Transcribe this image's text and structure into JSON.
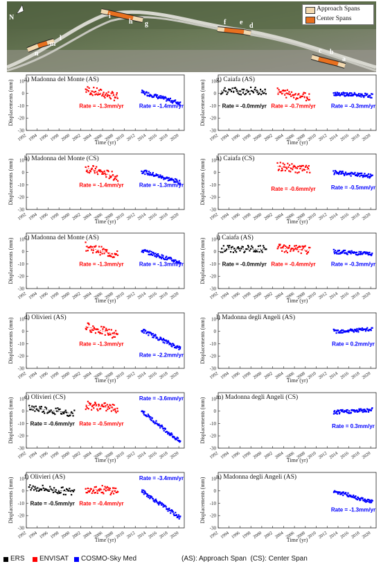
{
  "map": {
    "north_label": "N",
    "legend": [
      {
        "label": "Approach Spans",
        "color": "#f2d9b0"
      },
      {
        "label": "Center Spans",
        "color": "#e8701f"
      }
    ],
    "span_labels": [
      "a",
      "b",
      "c",
      "d",
      "e",
      "f",
      "g",
      "h",
      "i",
      "l",
      "m",
      "n"
    ]
  },
  "colors": {
    "ERS": "#000000",
    "ENVISAT": "#ff0000",
    "COSMO": "#0000ff"
  },
  "footer": {
    "legend": [
      {
        "label": "ERS",
        "color": "#000000"
      },
      {
        "label": "ENVISAT",
        "color": "#ff0000"
      },
      {
        "label": "COSMO-Sky Med",
        "color": "#0000ff"
      }
    ],
    "abbrev_note": "(AS): Approach Span  (CS): Center Span"
  },
  "chart_data": [
    {
      "panel": "a",
      "type": "scatter",
      "title": "a) Madonna del Monte (AS)",
      "xlabel": "Time (yr)",
      "ylabel": "Displacements (mm)",
      "xlim": [
        1992,
        2021
      ],
      "ylim": [
        -30,
        15
      ],
      "xticks": [
        "1992",
        "1994",
        "1996",
        "1998",
        "2000",
        "2002",
        "2004",
        "2006",
        "2008",
        "2010",
        "2012",
        "2014",
        "2016",
        "2018",
        "2020"
      ],
      "yticks": [
        "10",
        "0",
        "-10",
        "-20",
        "-30"
      ],
      "series": [
        {
          "name": "ENVISAT",
          "x_range": [
            2002.9,
            2008.8
          ],
          "y_start": 3,
          "y_end": -3,
          "rate_label": "Rate = -1.3mm/yr"
        },
        {
          "name": "COSMO-Sky Med",
          "x_range": [
            2013.2,
            2020.3
          ],
          "y_start": 1,
          "y_end": -8,
          "rate_label": "Rate = -1.4mm/yr"
        }
      ]
    },
    {
      "panel": "b",
      "type": "scatter",
      "title": "b) Madonna del Monte (CS)",
      "xlabel": "Time (yr)",
      "ylabel": "Displacements (mm)",
      "xlim": [
        1992,
        2021
      ],
      "ylim": [
        -30,
        15
      ],
      "xticks": [
        "1992",
        "1994",
        "1996",
        "1998",
        "2000",
        "2002",
        "2004",
        "2006",
        "2008",
        "2010",
        "2012",
        "2014",
        "2016",
        "2018",
        "2020"
      ],
      "yticks": [
        "10",
        "0",
        "-10",
        "-20",
        "-30"
      ],
      "series": [
        {
          "name": "ENVISAT",
          "x_range": [
            2002.9,
            2008.8
          ],
          "y_start": 4,
          "y_end": -4,
          "rate_label": "Rate = -1.4mm/yr"
        },
        {
          "name": "COSMO-Sky Med",
          "x_range": [
            2013.2,
            2020.3
          ],
          "y_start": 1,
          "y_end": -8,
          "rate_label": "Rate = -1.3mm/yr"
        }
      ]
    },
    {
      "panel": "c",
      "type": "scatter",
      "title": "c) Madonna del Monte (AS)",
      "xlabel": "Time (yr)",
      "ylabel": "Displacements (mm)",
      "xlim": [
        1992,
        2021
      ],
      "ylim": [
        -30,
        15
      ],
      "xticks": [
        "1992",
        "1994",
        "1996",
        "1998",
        "2000",
        "2002",
        "2004",
        "2006",
        "2008",
        "2010",
        "2012",
        "2014",
        "2016",
        "2018",
        "2020"
      ],
      "yticks": [
        "10",
        "0",
        "-10",
        "-20",
        "-30"
      ],
      "series": [
        {
          "name": "ENVISAT",
          "x_range": [
            2002.9,
            2008.8
          ],
          "y_start": 4,
          "y_end": -3,
          "rate_label": "Rate = -1.3mm/yr"
        },
        {
          "name": "COSMO-Sky Med",
          "x_range": [
            2013.2,
            2020.3
          ],
          "y_start": 1,
          "y_end": -9,
          "rate_label": "Rate = -1.3mm/yr"
        }
      ]
    },
    {
      "panel": "d",
      "type": "scatter",
      "title": "d) Olivieri (AS)",
      "xlabel": "Time (yr)",
      "ylabel": "Displacements (mm)",
      "xlim": [
        1992,
        2021
      ],
      "ylim": [
        -30,
        15
      ],
      "xticks": [
        "1992",
        "1994",
        "1996",
        "1998",
        "2000",
        "2002",
        "2004",
        "2006",
        "2008",
        "2010",
        "2012",
        "2014",
        "2016",
        "2018",
        "2020"
      ],
      "yticks": [
        "10",
        "0",
        "-10",
        "-20",
        "-30"
      ],
      "series": [
        {
          "name": "ENVISAT",
          "x_range": [
            2002.9,
            2008.8
          ],
          "y_start": 4,
          "y_end": -3,
          "rate_label": "Rate = -1.3mm/yr"
        },
        {
          "name": "COSMO-Sky Med",
          "x_range": [
            2013.2,
            2020.3
          ],
          "y_start": 1,
          "y_end": -14,
          "rate_label": "Rate = -2.2mm/yr"
        }
      ]
    },
    {
      "panel": "e",
      "type": "scatter",
      "title": "e) Olivieri (CS)",
      "xlabel": "Time (yr)",
      "ylabel": "Displacements (mm)",
      "xlim": [
        1992,
        2021
      ],
      "ylim": [
        -30,
        15
      ],
      "xticks": [
        "1992",
        "1994",
        "1996",
        "1998",
        "2000",
        "2002",
        "2004",
        "2006",
        "2008",
        "2010",
        "2012",
        "2014",
        "2016",
        "2018",
        "2020"
      ],
      "yticks": [
        "10",
        "0",
        "-10",
        "-20",
        "-30"
      ],
      "series": [
        {
          "name": "ERS",
          "x_range": [
            1992.5,
            2000.8
          ],
          "y_start": 3,
          "y_end": -2,
          "rate_label": "Rate = -0.6mm/yr"
        },
        {
          "name": "ENVISAT",
          "x_range": [
            2002.9,
            2008.8
          ],
          "y_start": 5,
          "y_end": 2,
          "rate_label": "Rate = -0.5mm/yr"
        },
        {
          "name": "COSMO-Sky Med",
          "x_range": [
            2013.2,
            2020.3
          ],
          "y_start": 0,
          "y_end": -25,
          "rate_label": "Rate = -3.6mm/yr"
        }
      ]
    },
    {
      "panel": "f",
      "type": "scatter",
      "title": "f) Olivieri (AS)",
      "xlabel": "Time (yr)",
      "ylabel": "Displacements (mm)",
      "xlim": [
        1992,
        2021
      ],
      "ylim": [
        -30,
        15
      ],
      "xticks": [
        "1992",
        "1994",
        "1996",
        "1998",
        "2000",
        "2002",
        "2004",
        "2006",
        "2008",
        "2010",
        "2012",
        "2014",
        "2016",
        "2018",
        "2020"
      ],
      "yticks": [
        "10",
        "0",
        "-10",
        "-20",
        "-30"
      ],
      "series": [
        {
          "name": "ERS",
          "x_range": [
            1992.5,
            2000.8
          ],
          "y_start": 3,
          "y_end": -1,
          "rate_label": "Rate = -0.5mm/yr"
        },
        {
          "name": "ENVISAT",
          "x_range": [
            2002.9,
            2008.8
          ],
          "y_start": 2,
          "y_end": 0,
          "rate_label": "Rate = -0.4mm/yr"
        },
        {
          "name": "COSMO-Sky Med",
          "x_range": [
            2013.2,
            2020.3
          ],
          "y_start": 0,
          "y_end": -22,
          "rate_label": "Rate = -3.4mm/yr"
        }
      ]
    },
    {
      "panel": "g",
      "type": "scatter",
      "title": "g) Caiafa (AS)",
      "xlabel": "Time (yr)",
      "ylabel": "Displacements (mm)",
      "xlim": [
        1992,
        2021
      ],
      "ylim": [
        -30,
        15
      ],
      "xticks": [
        "1992",
        "1994",
        "1996",
        "1998",
        "2000",
        "2002",
        "2004",
        "2006",
        "2008",
        "2010",
        "2012",
        "2014",
        "2016",
        "2018",
        "2020"
      ],
      "yticks": [
        "10",
        "0",
        "-10",
        "-20",
        "-30"
      ],
      "series": [
        {
          "name": "ERS",
          "x_range": [
            1992.5,
            2000.8
          ],
          "y_start": 2,
          "y_end": 2,
          "rate_label": "Rate = -0.0mm/yr"
        },
        {
          "name": "ENVISAT",
          "x_range": [
            2002.9,
            2008.8
          ],
          "y_start": 1,
          "y_end": -3,
          "rate_label": "Rate = -0.7mm/yr"
        },
        {
          "name": "COSMO-Sky Med",
          "x_range": [
            2013.2,
            2020.3
          ],
          "y_start": 0,
          "y_end": -2,
          "rate_label": "Rate = -0.3mm/yr"
        }
      ]
    },
    {
      "panel": "h",
      "type": "scatter",
      "title": "h) Caiafa (CS)",
      "xlabel": "Time (yr)",
      "ylabel": "Displacements (mm)",
      "xlim": [
        1992,
        2021
      ],
      "ylim": [
        -30,
        15
      ],
      "xticks": [
        "1992",
        "1994",
        "1996",
        "1998",
        "2000",
        "2002",
        "2004",
        "2006",
        "2008",
        "2010",
        "2012",
        "2014",
        "2016",
        "2018",
        "2020"
      ],
      "yticks": [
        "10",
        "0",
        "-10",
        "-20",
        "-30"
      ],
      "series": [
        {
          "name": "ENVISAT",
          "x_range": [
            2002.9,
            2008.8
          ],
          "y_start": 5,
          "y_end": 2,
          "rate_label": "Rate = -0.6mm/yr"
        },
        {
          "name": "COSMO-Sky Med",
          "x_range": [
            2013.2,
            2020.3
          ],
          "y_start": 0,
          "y_end": -3,
          "rate_label": "Rate = -0.5mm/yr"
        }
      ]
    },
    {
      "panel": "i",
      "type": "scatter",
      "title": "i) Caiafa (AS)",
      "xlabel": "Time (yr)",
      "ylabel": "Displacements (mm)",
      "xlim": [
        1992,
        2021
      ],
      "ylim": [
        -30,
        15
      ],
      "xticks": [
        "1992",
        "1994",
        "1996",
        "1998",
        "2000",
        "2002",
        "2004",
        "2006",
        "2008",
        "2010",
        "2012",
        "2014",
        "2016",
        "2018",
        "2020"
      ],
      "yticks": [
        "10",
        "0",
        "-10",
        "-20",
        "-30"
      ],
      "series": [
        {
          "name": "ERS",
          "x_range": [
            1992.5,
            2000.8
          ],
          "y_start": 2,
          "y_end": 2,
          "rate_label": "Rate = -0.0mm/yr"
        },
        {
          "name": "ENVISAT",
          "x_range": [
            2002.9,
            2008.8
          ],
          "y_start": 3,
          "y_end": 1,
          "rate_label": "Rate = -0.4mm/yr"
        },
        {
          "name": "COSMO-Sky Med",
          "x_range": [
            2013.2,
            2020.3
          ],
          "y_start": 0,
          "y_end": -2,
          "rate_label": "Rate = -0.3mm/yr"
        }
      ]
    },
    {
      "panel": "l",
      "type": "scatter",
      "title": "l) Madonna degli Angeli (AS)",
      "xlabel": "Time (yr)",
      "ylabel": "Displacements (mm)",
      "xlim": [
        1992,
        2021
      ],
      "ylim": [
        -30,
        15
      ],
      "xticks": [
        "1992",
        "1994",
        "1996",
        "1998",
        "2000",
        "2002",
        "2004",
        "2006",
        "2008",
        "2010",
        "2012",
        "2014",
        "2016",
        "2018",
        "2020"
      ],
      "yticks": [
        "10",
        "0",
        "-10",
        "-20",
        "-30"
      ],
      "series": [
        {
          "name": "COSMO-Sky Med",
          "x_range": [
            2013.2,
            2020.3
          ],
          "y_start": 0,
          "y_end": 1.5,
          "rate_label": "Rate = 0.2mm/yr"
        }
      ]
    },
    {
      "panel": "m",
      "type": "scatter",
      "title": "m) Madonna degli Angeli (CS)",
      "xlabel": "Time (yr)",
      "ylabel": "Displacements (mm)",
      "xlim": [
        1992,
        2021
      ],
      "ylim": [
        -30,
        15
      ],
      "xticks": [
        "1992",
        "1994",
        "1996",
        "1998",
        "2000",
        "2002",
        "2004",
        "2006",
        "2008",
        "2010",
        "2012",
        "2014",
        "2016",
        "2018",
        "2020"
      ],
      "yticks": [
        "10",
        "0",
        "-10",
        "-20",
        "-30"
      ],
      "series": [
        {
          "name": "COSMO-Sky Med",
          "x_range": [
            2013.2,
            2020.3
          ],
          "y_start": -1,
          "y_end": 1,
          "rate_label": "Rate = 0.3mm/yr"
        }
      ]
    },
    {
      "panel": "n",
      "type": "scatter",
      "title": "n) Madonna degli Angeli (AS)",
      "xlabel": "Time (yr)",
      "ylabel": "Displacements (mm)",
      "xlim": [
        1992,
        2021
      ],
      "ylim": [
        -30,
        15
      ],
      "xticks": [
        "1992",
        "1994",
        "1996",
        "1998",
        "2000",
        "2002",
        "2004",
        "2006",
        "2008",
        "2010",
        "2012",
        "2014",
        "2016",
        "2018",
        "2020"
      ],
      "yticks": [
        "10",
        "0",
        "-10",
        "-20",
        "-30"
      ],
      "series": [
        {
          "name": "COSMO-Sky Med",
          "x_range": [
            2013.2,
            2020.3
          ],
          "y_start": 0,
          "y_end": -9,
          "rate_label": "Rate = -1.3mm/yr"
        }
      ]
    }
  ]
}
